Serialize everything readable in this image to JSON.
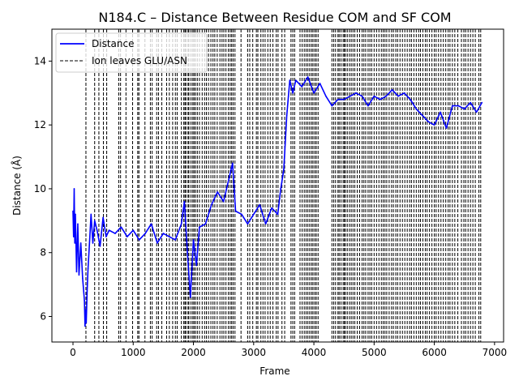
{
  "chart_data": {
    "type": "line",
    "title": "N184.C – Distance Between Residue COM and SF COM",
    "xlabel": "Frame",
    "ylabel": "Distance (Å)",
    "xlim": [
      -350,
      7150
    ],
    "ylim": [
      5.2,
      15.0
    ],
    "xticks": [
      0,
      1000,
      2000,
      3000,
      4000,
      5000,
      6000,
      7000
    ],
    "yticks": [
      6,
      8,
      10,
      12,
      14
    ],
    "grid": false,
    "legend": {
      "placement": "top-left",
      "entries": [
        {
          "label": "Distance",
          "style": "solid",
          "color": "#0000ff"
        },
        {
          "label": "Ion leaves GLU/ASN",
          "style": "dashed",
          "color": "#000000"
        }
      ]
    },
    "series": [
      {
        "name": "Distance",
        "color": "#0000ff",
        "x": [
          0,
          10,
          20,
          30,
          40,
          60,
          80,
          100,
          130,
          160,
          190,
          200,
          210,
          220,
          235,
          250,
          280,
          300,
          330,
          360,
          400,
          450,
          500,
          550,
          600,
          700,
          800,
          900,
          1000,
          1100,
          1200,
          1300,
          1400,
          1500,
          1600,
          1700,
          1800,
          1850,
          1900,
          1950,
          2000,
          2050,
          2100,
          2200,
          2300,
          2400,
          2500,
          2600,
          2650,
          2700,
          2800,
          2900,
          3000,
          3100,
          3200,
          3300,
          3400,
          3450,
          3500,
          3550,
          3600,
          3650,
          3700,
          3800,
          3900,
          4000,
          4100,
          4200,
          4300,
          4400,
          4500,
          4600,
          4700,
          4800,
          4900,
          5000,
          5100,
          5200,
          5300,
          5400,
          5500,
          5600,
          5700,
          5800,
          5900,
          6000,
          6100,
          6200,
          6300,
          6400,
          6500,
          6600,
          6700,
          6790
        ],
        "values": [
          9.3,
          8.5,
          10.0,
          8.3,
          9.2,
          7.4,
          8.9,
          7.3,
          8.3,
          7.2,
          6.5,
          5.7,
          6.2,
          5.8,
          6.8,
          7.5,
          8.5,
          9.2,
          8.3,
          9.0,
          8.7,
          8.2,
          9.1,
          8.5,
          8.7,
          8.6,
          8.8,
          8.5,
          8.7,
          8.4,
          8.6,
          8.9,
          8.3,
          8.6,
          8.5,
          8.4,
          8.9,
          9.6,
          8.0,
          6.6,
          8.4,
          7.6,
          8.8,
          8.9,
          9.5,
          9.9,
          9.6,
          10.4,
          10.8,
          9.3,
          9.2,
          8.9,
          9.2,
          9.5,
          8.9,
          9.4,
          9.2,
          10.0,
          10.6,
          12.3,
          13.4,
          13.0,
          13.4,
          13.2,
          13.5,
          13.0,
          13.3,
          12.9,
          12.6,
          12.8,
          12.8,
          12.9,
          13.0,
          12.9,
          12.6,
          12.9,
          12.8,
          12.9,
          13.1,
          12.9,
          13.0,
          12.8,
          12.5,
          12.3,
          12.1,
          12.0,
          12.4,
          11.9,
          12.6,
          12.6,
          12.5,
          12.7,
          12.4,
          12.7
        ]
      }
    ],
    "ion_leave_frames": [
      215,
      360,
      430,
      505,
      560,
      760,
      790,
      880,
      990,
      1075,
      1095,
      1195,
      1285,
      1315,
      1390,
      1420,
      1475,
      1555,
      1600,
      1655,
      1700,
      1730,
      1800,
      1840,
      1860,
      1875,
      1910,
      1925,
      1960,
      1990,
      2010,
      2035,
      2065,
      2100,
      2145,
      2185,
      2215,
      2250,
      2290,
      2325,
      2355,
      2395,
      2440,
      2475,
      2505,
      2540,
      2580,
      2610,
      2635,
      2660,
      2690,
      2790,
      2900,
      2935,
      2985,
      3045,
      3070,
      3120,
      3155,
      3190,
      3235,
      3275,
      3320,
      3375,
      3405,
      3470,
      3515,
      3620,
      3650,
      3680,
      3770,
      3805,
      3840,
      3870,
      3900,
      3930,
      3960,
      3985,
      4015,
      4040,
      4070,
      4300,
      4330,
      4360,
      4400,
      4420,
      4450,
      4485,
      4505,
      4525,
      4555,
      4590,
      4620,
      4650,
      4680,
      4720,
      4760,
      4800,
      4830,
      4860,
      4900,
      4930,
      4960,
      5000,
      5040,
      5080,
      5120,
      5150,
      5180,
      5210,
      5250,
      5290,
      5320,
      5360,
      5390,
      5430,
      5470,
      5510,
      5550,
      5590,
      5620,
      5660,
      5700,
      5740,
      5770,
      5810,
      5850,
      5880,
      5920,
      5960,
      6000,
      6030,
      6070,
      6110,
      6150,
      6190,
      6230,
      6260,
      6300,
      6340,
      6390,
      6450,
      6490,
      6520,
      6560,
      6600,
      6640,
      6680,
      6740,
      6770
    ]
  }
}
